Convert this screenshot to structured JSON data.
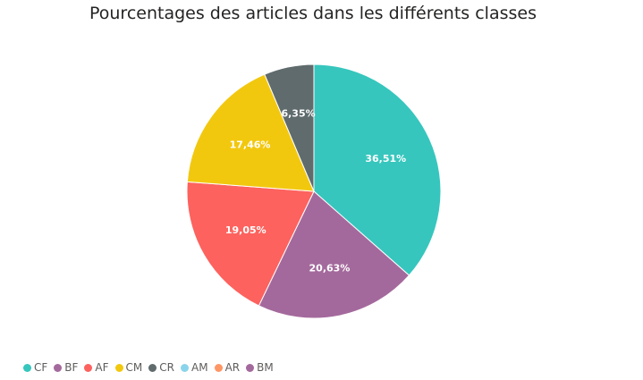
{
  "chart_data": {
    "type": "pie",
    "title": "Pourcentages des articles dans les différents classes",
    "slices": [
      {
        "name": "CF",
        "value": 36.51,
        "label": "36,51%",
        "color": "#36c6bd"
      },
      {
        "name": "BM",
        "value": 20.63,
        "label": "20,63%",
        "color": "#a4699c"
      },
      {
        "name": "AF",
        "value": 19.05,
        "label": "19,05%",
        "color": "#fd625e"
      },
      {
        "name": "CM",
        "value": 17.46,
        "label": "17,46%",
        "color": "#f2c80f"
      },
      {
        "name": "CR",
        "value": 6.35,
        "label": "6,35%",
        "color": "#5f6b6d"
      }
    ],
    "legend_position": "bottom-left",
    "legend": [
      {
        "name": "CF",
        "color": "#36c6bd"
      },
      {
        "name": "BF",
        "color": "#a4699c"
      },
      {
        "name": "AF",
        "color": "#fd625e"
      },
      {
        "name": "CM",
        "color": "#f2c80f"
      },
      {
        "name": "CR",
        "color": "#5f6b6d"
      },
      {
        "name": "AM",
        "color": "#8ad4eb"
      },
      {
        "name": "AR",
        "color": "#fe9666"
      },
      {
        "name": "BM",
        "color": "#a4699c"
      }
    ]
  }
}
